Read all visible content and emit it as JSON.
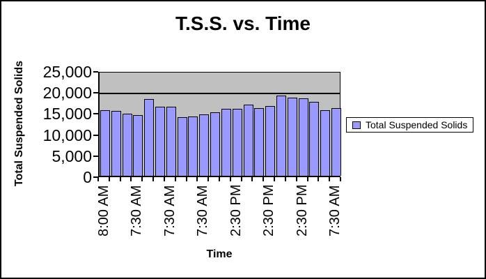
{
  "window": {
    "background": "#ffffff",
    "border_color": "#000000"
  },
  "chart_data": {
    "type": "bar",
    "title": "T.S.S. vs. Time",
    "xlabel": "Time",
    "ylabel": "Total Suspended Solids",
    "legend_position": "right",
    "legend": [
      {
        "label": "Total Suspended Solids",
        "color": "#9999ff"
      }
    ],
    "plot_background": "#c0c0c0",
    "bar_color": "#9999ff",
    "bar_border_color": "#000000",
    "grid_on": true,
    "gridlines": [
      20000
    ],
    "ylim": [
      0,
      25000
    ],
    "ytick_interval": 5000,
    "yticks": [
      {
        "value": 0,
        "label": "0"
      },
      {
        "value": 5000,
        "label": "5,000"
      },
      {
        "value": 10000,
        "label": "10,000"
      },
      {
        "value": 15000,
        "label": "15,000"
      },
      {
        "value": 20000,
        "label": "20,000"
      },
      {
        "value": 25000,
        "label": "25,000"
      }
    ],
    "x_labels_shown_every": 3,
    "categories": [
      "8:00 AM",
      "",
      "",
      "7:30 AM",
      "",
      "",
      "7:30 AM",
      "",
      "",
      "7:30 AM",
      "",
      "",
      "2:30 PM",
      "",
      "",
      "2:30 PM",
      "",
      "",
      "2:30 PM",
      "",
      "",
      "7:30 AM"
    ],
    "values": [
      15800,
      15700,
      15100,
      14700,
      18600,
      16700,
      16700,
      14200,
      14400,
      14800,
      15400,
      16200,
      16200,
      17200,
      16400,
      16900,
      19500,
      18900,
      18800,
      17900,
      15800,
      16400
    ]
  }
}
